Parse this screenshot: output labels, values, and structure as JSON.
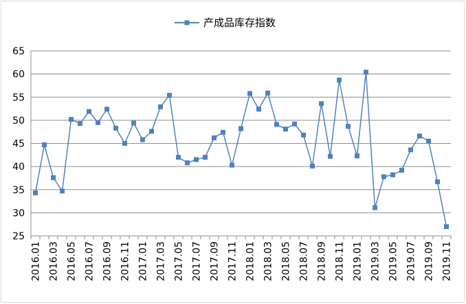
{
  "chart_data": {
    "type": "line",
    "title": "",
    "xlabel": "",
    "ylabel": "",
    "ylim": [
      25,
      65
    ],
    "yticks": [
      25,
      30,
      35,
      40,
      45,
      50,
      55,
      60,
      65
    ],
    "grid": true,
    "legend": "top-center",
    "x_tick_labels": [
      "2016.01",
      "2016.03",
      "2016.05",
      "2016.07",
      "2016.09",
      "2016.11",
      "2017.01",
      "2017.03",
      "2017.05",
      "2017.07",
      "2017.09",
      "2017.11",
      "2018.01",
      "2018.03",
      "2018.05",
      "2018.07",
      "2018.09",
      "2018.11",
      "2019.01",
      "2019.03",
      "2019.05",
      "2019.07",
      "2019.09",
      "2019.11"
    ],
    "categories": [
      "2016.01",
      "2016.02",
      "2016.03",
      "2016.04",
      "2016.05",
      "2016.06",
      "2016.07",
      "2016.08",
      "2016.09",
      "2016.10",
      "2016.11",
      "2016.12",
      "2017.01",
      "2017.02",
      "2017.03",
      "2017.04",
      "2017.05",
      "2017.06",
      "2017.07",
      "2017.08",
      "2017.09",
      "2017.10",
      "2017.11",
      "2017.12",
      "2018.01",
      "2018.02",
      "2018.03",
      "2018.04",
      "2018.05",
      "2018.06",
      "2018.07",
      "2018.08",
      "2018.09",
      "2018.10",
      "2018.11",
      "2018.12",
      "2019.01",
      "2019.02",
      "2019.03",
      "2019.04",
      "2019.05",
      "2019.06",
      "2019.07",
      "2019.08",
      "2019.09",
      "2019.10",
      "2019.11"
    ],
    "series": [
      {
        "name": "产成品库存指数",
        "color": "#4f81bd",
        "marker": "square",
        "values": [
          34.3,
          44.7,
          37.6,
          34.7,
          50.2,
          49.3,
          51.9,
          49.5,
          52.4,
          48.3,
          45.0,
          49.4,
          45.8,
          47.6,
          52.9,
          55.4,
          42.0,
          40.8,
          41.5,
          42.0,
          46.2,
          47.4,
          40.3,
          48.2,
          55.8,
          52.4,
          55.9,
          49.1,
          48.1,
          49.2,
          46.8,
          40.1,
          53.6,
          42.2,
          58.7,
          48.7,
          42.3,
          60.4,
          31.1,
          37.8,
          38.2,
          39.2,
          43.6,
          46.6,
          45.5,
          36.7,
          27.0
        ]
      }
    ]
  }
}
